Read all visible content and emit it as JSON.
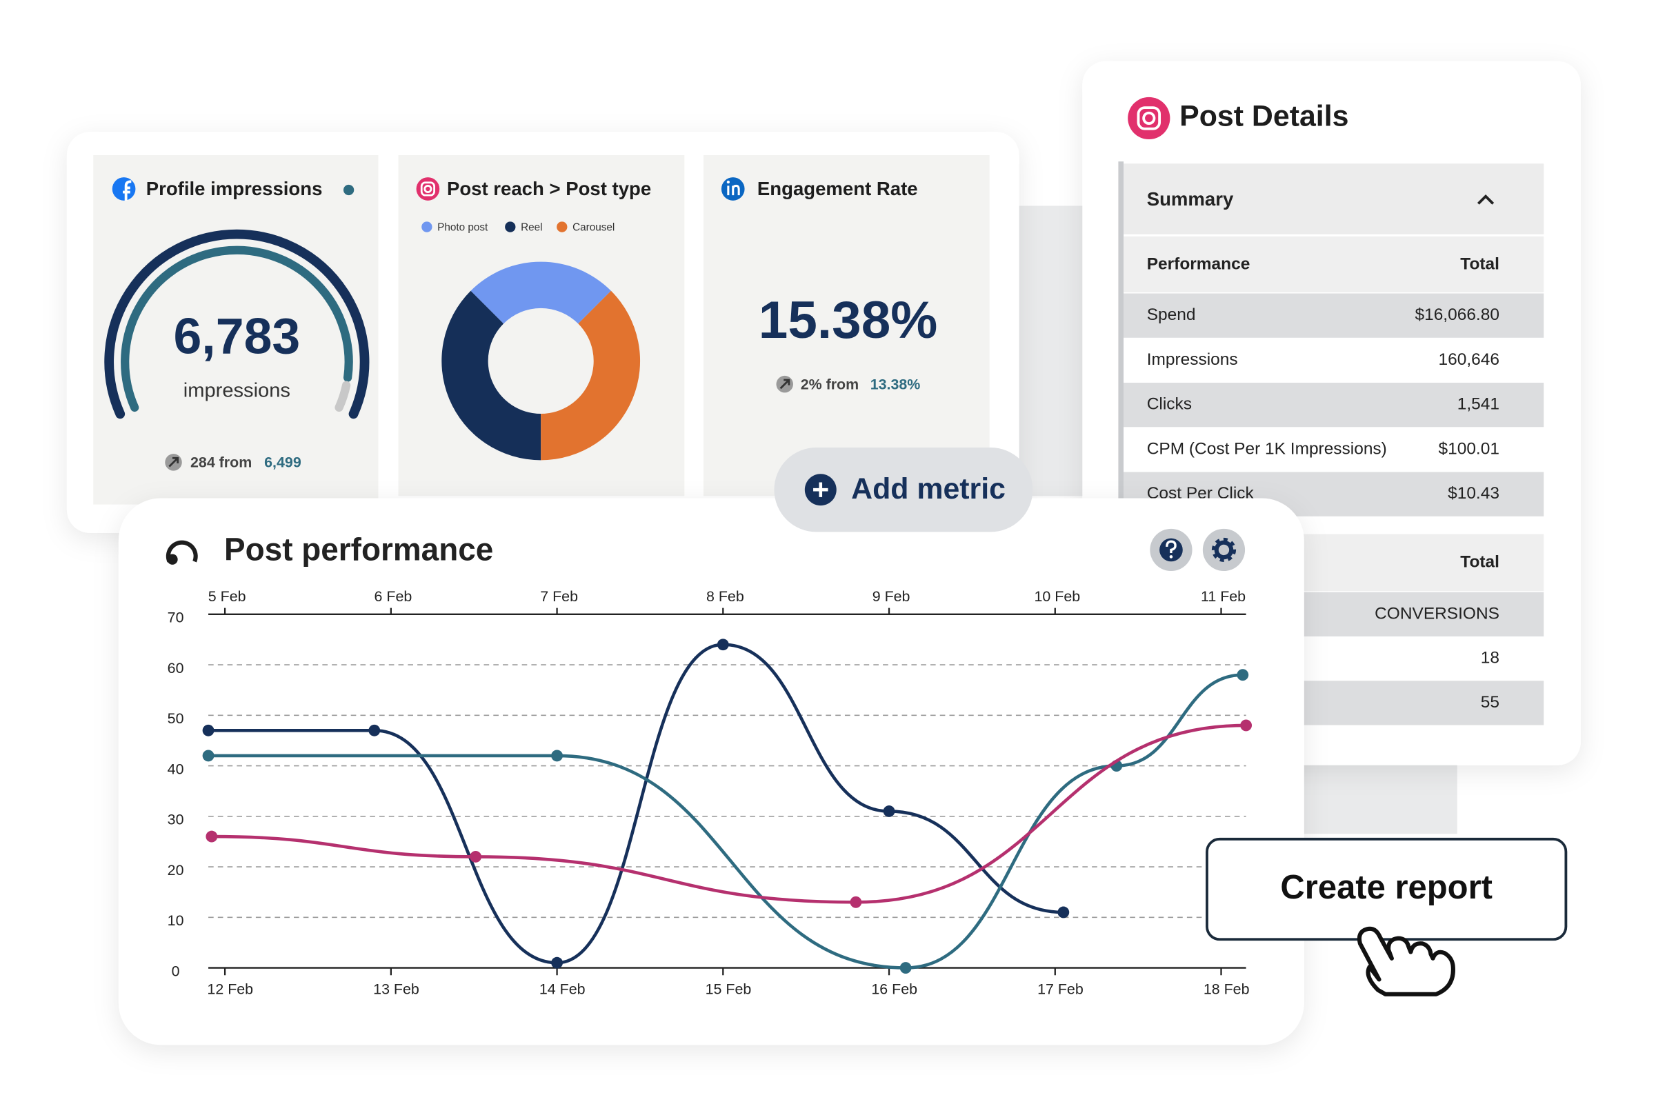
{
  "profile_impressions": {
    "title": "Profile impressions",
    "value": "6,783",
    "unit": "impressions",
    "change": "284 from",
    "previous": "6,499"
  },
  "engagement_rate": {
    "title": "Engagement Rate",
    "value": "15.38%",
    "change": "2% from",
    "previous": "13.38%"
  },
  "post_details": {
    "title": "Post Details",
    "summary": "Summary",
    "header": [
      "Performance",
      "Total"
    ],
    "rows": [
      [
        "Spend",
        "$16,066.80"
      ],
      [
        "Impressions",
        "160,646"
      ],
      [
        "Clicks",
        "1,541"
      ],
      [
        "CPM (Cost Per 1K Impressions)",
        "$100.01"
      ],
      [
        "Cost Per Click",
        "$10.43"
      ]
    ],
    "second_header": "Total",
    "second_rows": [
      "CONVERSIONS",
      "18",
      "55"
    ]
  },
  "add_metric": "Add metric",
  "create_report": "Create report",
  "chart_data": [
    {
      "type": "pie",
      "title": "Post reach > Post type",
      "categories": [
        "Photo post",
        "Reel",
        "Carousel"
      ],
      "values": [
        25,
        37.5,
        37.5
      ],
      "colors": [
        "#7097f0",
        "#152f58",
        "#e2732f"
      ],
      "donut": true
    },
    {
      "type": "line",
      "title": "Post performance",
      "xlim": [
        11.9,
        18.15
      ],
      "xticks": [
        {
          "value": 12,
          "label": "12 Feb"
        },
        {
          "value": 13,
          "label": "13 Feb"
        },
        {
          "value": 14,
          "label": "14 Feb"
        },
        {
          "value": 15,
          "label": "15 Feb"
        },
        {
          "value": 16,
          "label": "16 Feb"
        },
        {
          "value": 17,
          "label": "17 Feb"
        },
        {
          "value": 18,
          "label": "18 Feb"
        }
      ],
      "x2lim": [
        4.9,
        11.15
      ],
      "x2ticks": [
        {
          "value": 5,
          "label": "5 Feb"
        },
        {
          "value": 6,
          "label": "6 Feb"
        },
        {
          "value": 7,
          "label": "7 Feb"
        },
        {
          "value": 8,
          "label": "8 Feb"
        },
        {
          "value": 9,
          "label": "9 Feb"
        },
        {
          "value": 10,
          "label": "10 Feb"
        },
        {
          "value": 11,
          "label": "11 Feb"
        }
      ],
      "ylim": [
        0,
        70
      ],
      "yticks": [
        0,
        10,
        20,
        30,
        40,
        50,
        60,
        70
      ],
      "grid": true,
      "series": [
        {
          "color": "#16305a",
          "x": [
            11.9,
            12.9,
            14,
            15,
            16,
            17.05
          ],
          "values": [
            47,
            47,
            1,
            64,
            31,
            11
          ]
        },
        {
          "color": "#2e6b80",
          "x": [
            11.9,
            14,
            16.1,
            17.37,
            18.13
          ],
          "values": [
            42,
            42,
            0,
            40,
            58
          ]
        },
        {
          "color": "#b5306e",
          "x": [
            11.92,
            13.51,
            15.8,
            18.15
          ],
          "values": [
            26,
            22,
            13,
            48
          ]
        }
      ]
    }
  ]
}
